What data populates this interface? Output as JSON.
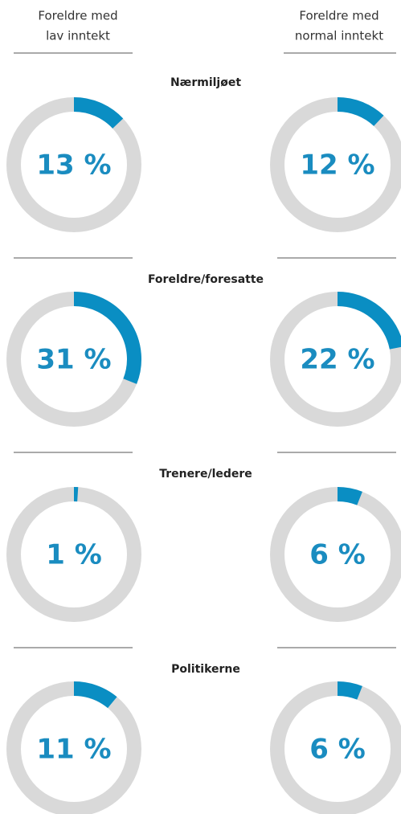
{
  "columns": [
    [
      "Foreldre med",
      "lav inntekt"
    ],
    [
      "Foreldre med",
      "normal inntekt"
    ]
  ],
  "chart_data": [
    {
      "type": "donut",
      "title": "Nærmiljøet",
      "values": [
        13,
        12
      ],
      "value_labels": [
        "13 %",
        "12 %"
      ],
      "color": "#0a8ec3",
      "track_color": "#d9d9d9",
      "ylim": [
        0,
        100
      ]
    },
    {
      "type": "donut",
      "title": "Foreldre/foresatte",
      "values": [
        31,
        22
      ],
      "value_labels": [
        "31 %",
        "22 %"
      ],
      "color": "#0a8ec3",
      "track_color": "#d9d9d9",
      "ylim": [
        0,
        100
      ]
    },
    {
      "type": "donut",
      "title": "Trenere/ledere",
      "values": [
        1,
        6
      ],
      "value_labels": [
        "1 %",
        "6 %"
      ],
      "color": "#0a8ec3",
      "track_color": "#d9d9d9",
      "ylim": [
        0,
        100
      ]
    },
    {
      "type": "donut",
      "title": "Politikerne",
      "values": [
        11,
        6
      ],
      "value_labels": [
        "11 %",
        "6 %"
      ],
      "color": "#0a8ec3",
      "track_color": "#d9d9d9",
      "ylim": [
        0,
        100
      ]
    }
  ]
}
